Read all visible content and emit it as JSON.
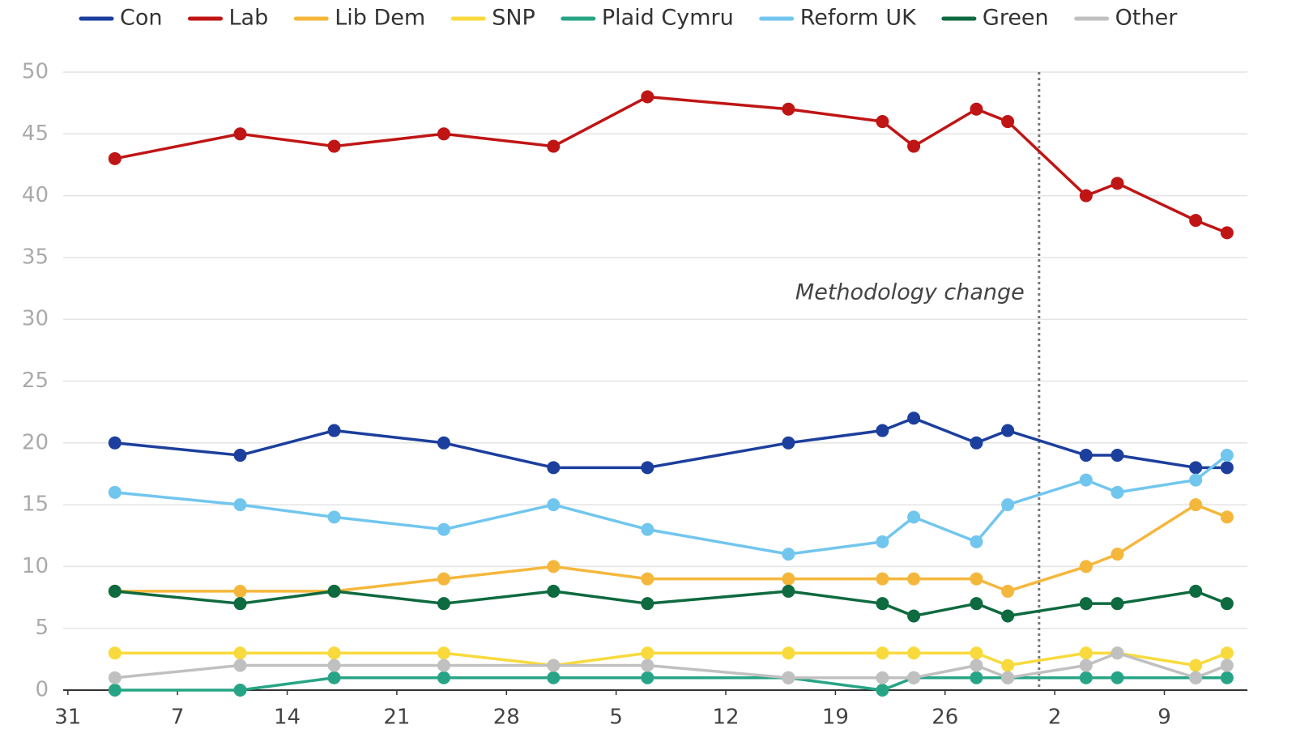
{
  "chart_data": {
    "type": "line",
    "x": [
      3,
      11,
      17,
      24,
      31,
      37,
      46,
      52,
      54,
      58,
      60,
      65,
      67,
      72,
      74
    ],
    "series": [
      {
        "name": "Con",
        "color": "#1c3f9d",
        "values": [
          20,
          19,
          21,
          20,
          18,
          18,
          20,
          21,
          22,
          20,
          21,
          19,
          19,
          18,
          18
        ]
      },
      {
        "name": "Lab",
        "color": "#c01515",
        "values": [
          43,
          45,
          44,
          45,
          44,
          48,
          47,
          46,
          44,
          47,
          46,
          40,
          41,
          38,
          37
        ]
      },
      {
        "name": "Lib Dem",
        "color": "#f5b73b",
        "values": [
          8,
          8,
          8,
          9,
          10,
          9,
          9,
          9,
          9,
          9,
          8,
          10,
          11,
          15,
          14
        ]
      },
      {
        "name": "SNP",
        "color": "#f8da3c",
        "values": [
          3,
          3,
          3,
          3,
          2,
          3,
          3,
          3,
          3,
          3,
          2,
          3,
          3,
          2,
          3
        ]
      },
      {
        "name": "Plaid Cymru",
        "color": "#27a486",
        "values": [
          0,
          0,
          1,
          1,
          1,
          1,
          1,
          0,
          1,
          1,
          1,
          1,
          1,
          1,
          1
        ]
      },
      {
        "name": "Reform UK",
        "color": "#71c6ee",
        "values": [
          16,
          15,
          14,
          13,
          15,
          13,
          11,
          12,
          14,
          12,
          15,
          17,
          16,
          17,
          19
        ]
      },
      {
        "name": "Green",
        "color": "#0e6a3f",
        "values": [
          8,
          7,
          8,
          7,
          8,
          7,
          8,
          7,
          6,
          7,
          6,
          7,
          7,
          8,
          7
        ]
      },
      {
        "name": "Other",
        "color": "#c0c0c0",
        "values": [
          1,
          2,
          2,
          2,
          2,
          2,
          1,
          1,
          1,
          2,
          1,
          2,
          3,
          1,
          2
        ]
      }
    ],
    "xlim": [
      -0.3,
      75.3
    ],
    "xticks": [
      {
        "value": 0,
        "label": "31"
      },
      {
        "value": 7,
        "label": "7"
      },
      {
        "value": 14,
        "label": "14"
      },
      {
        "value": 21,
        "label": "21"
      },
      {
        "value": 28,
        "label": "28"
      },
      {
        "value": 35,
        "label": "5"
      },
      {
        "value": 42,
        "label": "12"
      },
      {
        "value": 49,
        "label": "19"
      },
      {
        "value": 56,
        "label": "26"
      },
      {
        "value": 63,
        "label": "2"
      },
      {
        "value": 70,
        "label": "9"
      }
    ],
    "ylim": [
      0,
      50
    ],
    "yticks": [
      0,
      5,
      10,
      15,
      20,
      25,
      30,
      35,
      40,
      45,
      50
    ],
    "grid": true,
    "annotations": [
      {
        "x": 62,
        "text": "Methodology change"
      }
    ]
  }
}
